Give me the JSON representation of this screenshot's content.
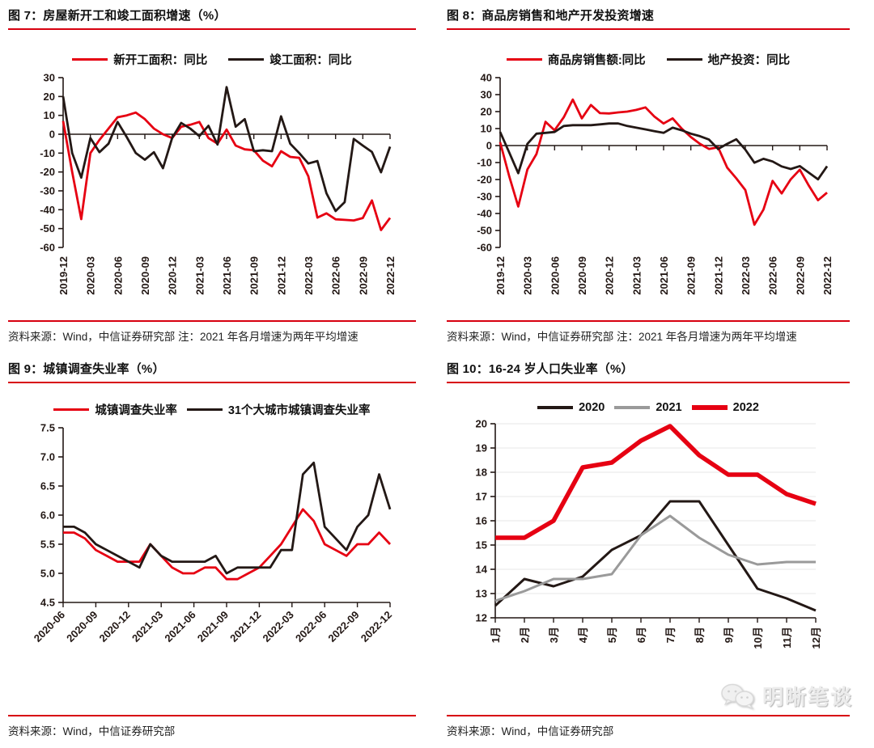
{
  "colors": {
    "accent_red": "#d7000f",
    "line_red": "#e60012",
    "line_black": "#231815",
    "line_gray": "#9a9a9a",
    "gridline": "#ececec"
  },
  "watermark": {
    "text": "明晰笔谈",
    "icon": "wechat-chat-bubbles"
  },
  "chart_data": [
    {
      "type": "line",
      "title": "图 7：房屋新开工和竣工面积增速（%）",
      "source_note": "资料来源：Wind，中信证券研究部 注：2021 年各月增速为两年平均增速",
      "x_tick_labels": [
        "2019-12",
        "2020-03",
        "2020-06",
        "2020-09",
        "2020-12",
        "2021-03",
        "2021-06",
        "2021-09",
        "2021-12",
        "2022-03",
        "2022-06",
        "2022-09",
        "2022-12"
      ],
      "x_label_rotation": 90,
      "ylim": [
        -60,
        30
      ],
      "yticks": [
        30,
        20,
        10,
        0,
        -10,
        -20,
        -30,
        -40,
        -50,
        -60
      ],
      "y_decimals": 0,
      "zero_axis": true,
      "gridlines": false,
      "legend_position": "top",
      "series": [
        {
          "name": "新开工面积：同比",
          "color": "#e60012",
          "width": 2.8,
          "values": [
            7,
            -20,
            -45,
            -10,
            -3,
            3,
            9,
            10,
            11.5,
            8,
            3,
            0,
            -2,
            4,
            5,
            6.5,
            -2,
            -5,
            2.5,
            -6,
            -8,
            -8.5,
            -14,
            -17,
            -9,
            -12,
            -12.5,
            -22.3,
            -44.2,
            -41.9,
            -45.1,
            -45.4,
            -45.7,
            -44.4,
            -35.1,
            -50.8,
            -44.3
          ]
        },
        {
          "name": "竣工面积：同比",
          "color": "#231815",
          "width": 2.8,
          "values": [
            20,
            -10,
            -23,
            -2,
            -9.5,
            -5,
            6.5,
            -1.5,
            -10,
            -13.5,
            -9.5,
            -18,
            -2,
            6,
            3,
            -1,
            4.5,
            -5.5,
            25,
            4,
            8,
            -9,
            -8.5,
            -9,
            9.5,
            -5,
            -10,
            -15.5,
            -14.2,
            -31.3,
            -40.7,
            -36,
            -2.5,
            -6,
            -9.4,
            -20.2,
            -6.6
          ]
        }
      ]
    },
    {
      "type": "line",
      "title": "图 8：商品房销售和地产开发投资增速",
      "source_note": "资料来源：Wind，中信证券研究部 注：2021 年各月增速为两年平均增速",
      "x_tick_labels": [
        "2019-12",
        "2020-03",
        "2020-06",
        "2020-09",
        "2020-12",
        "2021-03",
        "2021-06",
        "2021-09",
        "2021-12",
        "2022-03",
        "2022-06",
        "2022-09",
        "2022-12"
      ],
      "x_label_rotation": 90,
      "ylim": [
        -60,
        40
      ],
      "yticks": [
        40,
        30,
        20,
        10,
        0,
        -10,
        -20,
        -30,
        -40,
        -50,
        -60
      ],
      "y_decimals": 0,
      "zero_axis": true,
      "gridlines": false,
      "legend_position": "top",
      "series": [
        {
          "name": "商品房销售额:同比",
          "color": "#e60012",
          "width": 2.8,
          "values": [
            2,
            -18,
            -35.9,
            -14.1,
            -5,
            14,
            9,
            16.6,
            27.1,
            16,
            23.9,
            19.1,
            18.9,
            19.5,
            20,
            21,
            22.5,
            17,
            13,
            16,
            10,
            5,
            1,
            -2,
            -1,
            -13,
            -19.3,
            -26.2,
            -46.6,
            -37.7,
            -20.8,
            -28.2,
            -19.9,
            -14.2,
            -23.7,
            -32.2,
            -27.7
          ]
        },
        {
          "name": "地产投资：同比",
          "color": "#231815",
          "width": 2.8,
          "values": [
            8,
            -4,
            -16.3,
            1,
            7,
            7.5,
            8,
            11.5,
            12,
            12,
            12,
            12.5,
            13,
            13,
            11.5,
            10.5,
            9.5,
            8.5,
            7.5,
            10.5,
            9,
            7,
            5.5,
            3.5,
            -2,
            1,
            3.7,
            -2.4,
            -10.1,
            -7.8,
            -9.4,
            -12.3,
            -13.8,
            -12.1,
            -16,
            -19.9,
            -12.2
          ]
        }
      ]
    },
    {
      "type": "line",
      "title": "图 9：城镇调查失业率（%）",
      "source_note": "资料来源：Wind，中信证券研究部",
      "x_tick_labels": [
        "2020-06",
        "2020-09",
        "2020-12",
        "2021-03",
        "2021-06",
        "2021-09",
        "2021-12",
        "2022-03",
        "2022-06",
        "2022-09",
        "2022-12"
      ],
      "x_label_rotation": 45,
      "ylim": [
        4.5,
        7.5
      ],
      "yticks": [
        7.5,
        7.0,
        6.5,
        6.0,
        5.5,
        5.0,
        4.5
      ],
      "y_decimals": 1,
      "zero_axis": false,
      "gridlines": false,
      "legend_position": "top",
      "series": [
        {
          "name": "城镇调查失业率",
          "color": "#e60012",
          "width": 2.8,
          "values": [
            5.7,
            5.7,
            5.6,
            5.4,
            5.3,
            5.2,
            5.2,
            5.2,
            5.5,
            5.3,
            5.1,
            5.0,
            5.0,
            5.1,
            5.1,
            4.9,
            4.9,
            5.0,
            5.1,
            5.3,
            5.5,
            5.8,
            6.1,
            5.9,
            5.5,
            5.4,
            5.3,
            5.5,
            5.5,
            5.7,
            5.5
          ]
        },
        {
          "name": "31个大城市城镇调查失业率",
          "color": "#231815",
          "width": 2.8,
          "values": [
            5.8,
            5.8,
            5.7,
            5.5,
            5.4,
            5.3,
            5.2,
            5.1,
            5.5,
            5.3,
            5.2,
            5.2,
            5.2,
            5.2,
            5.3,
            5.0,
            5.1,
            5.1,
            5.1,
            5.1,
            5.4,
            5.4,
            6.7,
            6.9,
            5.8,
            5.6,
            5.4,
            5.8,
            6.0,
            6.7,
            6.1
          ]
        }
      ]
    },
    {
      "type": "line",
      "title": "图 10：16-24 岁人口失业率（%）",
      "source_note": "资料来源：Wind，中信证券研究部",
      "x_tick_labels": [
        "1月",
        "2月",
        "3月",
        "4月",
        "5月",
        "6月",
        "7月",
        "8月",
        "9月",
        "10月",
        "11月",
        "12月"
      ],
      "x_label_rotation": 90,
      "ylim": [
        12,
        20
      ],
      "yticks": [
        20,
        19,
        18,
        17,
        16,
        15,
        14,
        13,
        12
      ],
      "y_decimals": 0,
      "zero_axis": false,
      "gridlines": true,
      "legend_position": "top",
      "series": [
        {
          "name": "2020",
          "color": "#231815",
          "width": 3,
          "values": [
            12.5,
            13.6,
            13.3,
            13.7,
            14.8,
            15.4,
            16.8,
            16.8,
            15.0,
            13.2,
            12.8,
            12.3
          ]
        },
        {
          "name": "2021",
          "color": "#9a9a9a",
          "width": 3,
          "values": [
            12.7,
            13.1,
            13.6,
            13.6,
            13.8,
            15.4,
            16.2,
            15.3,
            14.6,
            14.2,
            14.3,
            14.3
          ]
        },
        {
          "name": "2022",
          "color": "#e60012",
          "width": 5.5,
          "values": [
            15.3,
            15.3,
            16.0,
            18.2,
            18.4,
            19.3,
            19.9,
            18.7,
            17.9,
            17.9,
            17.1,
            16.7
          ]
        }
      ]
    }
  ]
}
